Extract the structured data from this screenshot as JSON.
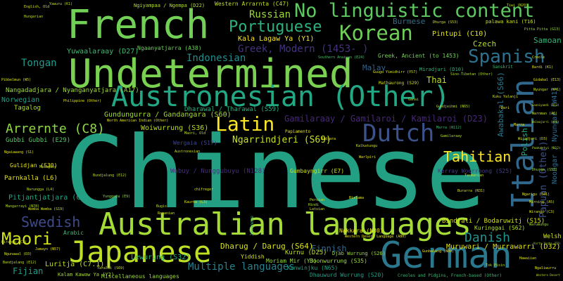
{
  "words": [
    {
      "text": "Chinese",
      "color": "#23a083"
    },
    {
      "text": "Undetermined",
      "color": "#7ad151"
    },
    {
      "text": "French",
      "color": "#73d056"
    },
    {
      "text": "Australian languages",
      "color": "#a5db36"
    },
    {
      "text": "German",
      "color": "#2a788e"
    },
    {
      "text": "Austronesian (Other)",
      "color": "#22a884"
    },
    {
      "text": "Japanese",
      "color": "#bddf26"
    },
    {
      "text": "Italian",
      "color": "#31688e"
    },
    {
      "text": "No linguistic content",
      "color": "#5ec962"
    },
    {
      "text": "Dutch",
      "color": "#3b528b"
    },
    {
      "text": "Korean",
      "color": "#6ece58"
    },
    {
      "text": "Spanish",
      "color": "#2c728e"
    },
    {
      "text": "Latin",
      "color": "#fde725"
    },
    {
      "text": "Portuguese",
      "color": "#2db27d"
    },
    {
      "text": "Maori",
      "color": "#d2e21b"
    },
    {
      "text": "Swedish",
      "color": "#3e4a89"
    },
    {
      "text": "Danish",
      "color": "#21918c"
    },
    {
      "text": "Arrernte (C8)",
      "color": "#8fd744"
    },
    {
      "text": "Tahitian",
      "color": "#fde725"
    },
    {
      "text": "Greek, Modern (1453- )",
      "color": "#46327e"
    },
    {
      "text": "Gamilaraay / Gamilaroi / Kamilaroi (D23)",
      "color": "#482878"
    },
    {
      "text": "Indonesian",
      "color": "#228c8d"
    },
    {
      "text": "Russian",
      "color": "#9dd93b"
    },
    {
      "text": "Multiple languages",
      "color": "#26828e"
    },
    {
      "text": "Tongan",
      "color": "#1e9b8a"
    },
    {
      "text": "Papuan (Other)",
      "color": "#3b528b"
    },
    {
      "text": "Ngarrindjeri (S69)",
      "color": "#c8e020"
    },
    {
      "text": "Finnish",
      "color": "#31688e"
    },
    {
      "text": "Fijian",
      "color": "#1f9e89"
    },
    {
      "text": "Czech",
      "color": "#b5de2b"
    },
    {
      "text": "Thai",
      "color": "#bddf26"
    },
    {
      "text": "Malay",
      "color": "#33638d"
    },
    {
      "text": "Burmese",
      "color": "#2e6d8e"
    },
    {
      "text": "Samoan",
      "color": "#31b57b"
    },
    {
      "text": "Polish",
      "color": "#26ad81"
    },
    {
      "text": "Pintupi (C10)",
      "color": "#e2e418"
    },
    {
      "text": "Yuwaalaraay (D27)",
      "color": "#3dbc74"
    },
    {
      "text": "Kala Lagaw Ya (Y1)",
      "color": "#fde725"
    },
    {
      "text": "Awabakal (S66)",
      "color": "#2a788e"
    },
    {
      "text": "Noongar / Nyungar (W41)",
      "color": "#2f6c8e"
    },
    {
      "text": "Kurnu (D25)",
      "color": "#c0df25"
    },
    {
      "text": "Lewurung (S32)",
      "color": "#2ab07f"
    },
    {
      "text": "Dharug / Darug (S64)",
      "color": "#d8e219"
    },
    {
      "text": "Luritja (C7.1)",
      "color": "#b8de29"
    },
    {
      "text": "Muruwari / Murrawarri (D32)",
      "color": "#e5e419"
    },
    {
      "text": "Gundungurra / Gandangara (S60)",
      "color": "#a2da37"
    },
    {
      "text": "Woiwurrung (S36)",
      "color": "#bade28"
    },
    {
      "text": "Dharawal / Tharawal (S59)",
      "color": "#29af7f"
    },
    {
      "text": "Nangadadjara / Nyanganyatjara (A17)",
      "color": "#9fda3a"
    },
    {
      "text": "Pitjantjatjara (C6)",
      "color": "#22a785"
    },
    {
      "text": "Parnkalla (L6)",
      "color": "#e7e419"
    },
    {
      "text": "Bindjali / Bodaruwitj (S15)",
      "color": "#d5e21a"
    },
    {
      "text": "Kuringgai (S62)",
      "color": "#b2dd2d"
    },
    {
      "text": "Ngaanyatjarra (A38)",
      "color": "#6ccd5a"
    },
    {
      "text": "Wubuy / Nunggubuyu (N128)",
      "color": "#472c7a"
    },
    {
      "text": "Yiddish",
      "color": "#d8e219"
    },
    {
      "text": "Norwegian",
      "color": "#1fa088"
    },
    {
      "text": "Tagalog",
      "color": "#b0dd2f"
    },
    {
      "text": "Welsh",
      "color": "#d2e21b"
    },
    {
      "text": "Arabic",
      "color": "#3aba76"
    },
    {
      "text": "Gumbayngirr (E7)",
      "color": "#cde11d"
    },
    {
      "text": "Kerray Woorroong (S25)",
      "color": "#433e85"
    },
    {
      "text": "Greek, Ancient (to 1453)",
      "color": "#73d056"
    },
    {
      "text": "Miscellaneous languages",
      "color": "#9bd93c"
    },
    {
      "text": "Kalam Kawaw Ya (Y2)",
      "color": "#a8db34"
    },
    {
      "text": "Kunwinjku (N65)",
      "color": "#20a386"
    },
    {
      "text": "Dhauwurd Wurrung (S20)",
      "color": "#1fa187"
    },
    {
      "text": "Boonwurrung (S35)",
      "color": "#a0da39"
    },
    {
      "text": "Moriam Mir (Y3)",
      "color": "#95d840"
    },
    {
      "text": "Wergaia (S17)",
      "color": "#404588"
    },
    {
      "text": "Nakkara (N80)",
      "color": "#ece51b"
    },
    {
      "text": "Gubbi Gubbi (E29)",
      "color": "#56c667"
    },
    {
      "text": "Gulidjan (S30)",
      "color": "#e5e419"
    },
    {
      "text": "Mathaurong (S29)",
      "color": "#d5e21a"
    },
    {
      "text": "Miradjuri (D10)",
      "color": "#34b679"
    },
    {
      "text": "Western Arrarnta (C47)",
      "color": "#c2df23"
    },
    {
      "text": "Ngiyampaa / Ngempa (D22)",
      "color": "#b5de2b"
    },
    {
      "text": "Western Desert Language (A80)",
      "color": "#e7e419"
    },
    {
      "text": "palawa kani (T16)",
      "color": "#cde11d"
    },
    {
      "text": "Djab Wurrung (S26)",
      "color": "#9bd93c"
    },
    {
      "text": "Sanskrit",
      "color": "#40bd72"
    },
    {
      "text": "Southern Anaiwan (E24)",
      "color": "#4ac16d"
    },
    {
      "text": "North American Indian (Other)",
      "color": "#e2e418"
    },
    {
      "text": "Sino-Tibetan (Other)",
      "color": "#b2dd2d"
    },
    {
      "text": "Yunggaya (E9)",
      "color": "#95d840"
    },
    {
      "text": "Marra (N112)",
      "color": "#3dbc74"
    },
    {
      "text": "Creoles and Pidgins, French-based (Other)",
      "color": "#3aba76"
    },
    {
      "text": "Ngarigu (S41)",
      "color": "#e2e418"
    },
    {
      "text": "Dhurga (S53)",
      "color": "#cde11d"
    },
    {
      "text": "Wirangu (C3)",
      "color": "#d8e219"
    },
    {
      "text": "Gunbalang (N89)",
      "color": "#e7e419"
    },
    {
      "text": "Narungga (L4)",
      "color": "#c0df25"
    },
    {
      "text": "Hawaiian",
      "color": "#dde318"
    },
    {
      "text": "Pitta Pitta (G13)",
      "color": "#9dd93b"
    },
    {
      "text": "Wirangu (C3)",
      "color": "#cde11d"
    },
    {
      "text": "Yorta Yorta (D2)",
      "color": "#a5db36"
    },
    {
      "text": "Ngunawal (D3)",
      "color": "#d5e21a"
    },
    {
      "text": "Kaurna (L3)",
      "color": "#e2e418"
    },
    {
      "text": "Bundjalung (E12)",
      "color": "#c0df25"
    },
    {
      "text": "Wiradjuri (D3)",
      "color": "#d5e21a"
    },
    {
      "text": "Jamayn (N57)",
      "color": "#e5e419"
    },
    {
      "text": "Yaraldi (S69)",
      "color": "#cde11d"
    },
    {
      "text": "Pibbelmun (W5)",
      "color": "#d8e219"
    },
    {
      "text": "Bandjalang (E12)",
      "color": "#c2df23"
    },
    {
      "text": "Mangarrayi (N78)",
      "color": "#b5de2b"
    },
    {
      "text": "Ngaiawang (S1)",
      "color": "#e2e418"
    },
    {
      "text": "Wemba Wemba (S19)",
      "color": "#d2e21b"
    },
    {
      "text": "Gidabal (E13)",
      "color": "#e7e419"
    },
    {
      "text": "Nyungar (W41)",
      "color": "#c8e020"
    },
    {
      "text": "Paakantyi (D12)",
      "color": "#b8de29"
    },
    {
      "text": "Dhurga (S53)",
      "color": "#a5db36"
    },
    {
      "text": "Burarra (N31)",
      "color": "#d8e219"
    },
    {
      "text": "Yawuru (K1)",
      "color": "#c2df23"
    },
    {
      "text": "Marra",
      "color": "#e7e419"
    },
    {
      "text": "Romanian",
      "color": "#cde11d"
    },
    {
      "text": "Hindi",
      "color": "#b0dd2f"
    },
    {
      "text": "Papiamento",
      "color": "#e2e418"
    },
    {
      "text": "Persian",
      "color": "#cde11d"
    },
    {
      "text": "Latvian",
      "color": "#d2e21b"
    },
    {
      "text": "Javanese",
      "color": "#3aba76"
    },
    {
      "text": "Bislama",
      "color": "#e5e419"
    },
    {
      "text": "Bugis",
      "color": "#c0df25"
    },
    {
      "text": "chifreger",
      "color": "#d8e219"
    },
    {
      "text": "Gundjeihmi (N65)",
      "color": "#b8de29"
    },
    {
      "text": "Guugu Yimidhirr (Y57)",
      "color": "#d5e21a"
    },
    {
      "text": "Philippine (Other)",
      "color": "#e2e418"
    },
    {
      "text": "Maori, Old",
      "color": "#c2df23"
    },
    {
      "text": "Austronesian",
      "color": "#cde11d"
    },
    {
      "text": "Kalkatungu",
      "color": "#d2e21b"
    },
    {
      "text": "Warlpiri",
      "color": "#e7e419"
    },
    {
      "text": "Tasmanian",
      "color": "#c8e020"
    },
    {
      "text": "Gamilaraay",
      "color": "#b5de2b"
    },
    {
      "text": "Ganai",
      "color": "#a5db36"
    },
    {
      "text": "Kuku Yalanji",
      "color": "#d5e21a"
    },
    {
      "text": "Bidjara",
      "color": "#e2e418"
    },
    {
      "text": "Malagasy",
      "color": "#cde11d"
    },
    {
      "text": "Hungarian",
      "color": "#c2df23"
    },
    {
      "text": "English, Old",
      "color": "#d8e219"
    },
    {
      "text": "Dari",
      "color": "#e5e419"
    },
    {
      "text": "Tok Pisin",
      "color": "#b8de29"
    },
    {
      "text": "Tiwi (N20)",
      "color": "#c0df25"
    },
    {
      "text": "Creole",
      "color": "#d2e21b"
    },
    {
      "text": "Bardi (K1)",
      "color": "#e7e419"
    },
    {
      "text": "Gooniyandi (K13)",
      "color": "#cde11d"
    },
    {
      "text": "Warnman (A6)",
      "color": "#c8e020"
    },
    {
      "text": "Walmajarri (A66)",
      "color": "#b5de2b"
    },
    {
      "text": "Mirning (A5)",
      "color": "#d5e21a"
    },
    {
      "text": "Warumungu",
      "color": "#a5db36"
    },
    {
      "text": "Ngaliwurru",
      "color": "#e2e418"
    },
    {
      "text": "Western Desert",
      "color": "#c2df23"
    }
  ]
}
